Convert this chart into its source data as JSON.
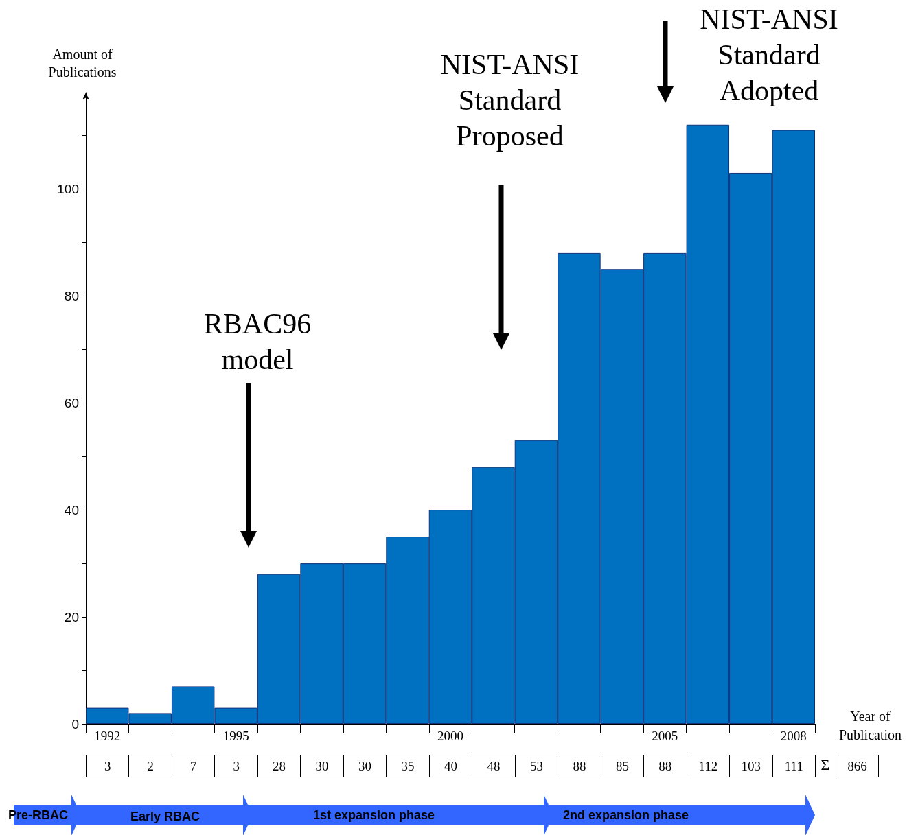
{
  "chart_data": {
    "type": "bar",
    "xlabel": "Year of Publication",
    "ylabel": "Amount of Publications",
    "categories": [
      "1992",
      null,
      null,
      "1995",
      null,
      null,
      null,
      null,
      "2000",
      null,
      null,
      null,
      null,
      "2005",
      null,
      null,
      "2008"
    ],
    "values": [
      3,
      2,
      7,
      3,
      28,
      30,
      30,
      35,
      40,
      48,
      53,
      88,
      85,
      88,
      112,
      103,
      111
    ],
    "color": "#0070c0",
    "ylim": [
      0,
      118
    ],
    "yticks": [
      0,
      {
        "value": 10,
        "label": null
      },
      20,
      {
        "value": 30,
        "label": null
      },
      40,
      {
        "value": 50,
        "label": null
      },
      60,
      {
        "value": 70,
        "label": null
      },
      80,
      {
        "value": 90,
        "label": null
      },
      100,
      {
        "value": 110,
        "label": null
      }
    ],
    "data_labels": true,
    "grid": false,
    "annotations": [
      "RBAC96 model",
      "NIST-ANSI Standard Proposed",
      "NIST-ANSI Standard Adopted",
      "Pre-RBAC",
      "Early RBAC",
      "1st expansion phase",
      "2nd expansion phase",
      "Σ",
      "866"
    ]
  }
}
